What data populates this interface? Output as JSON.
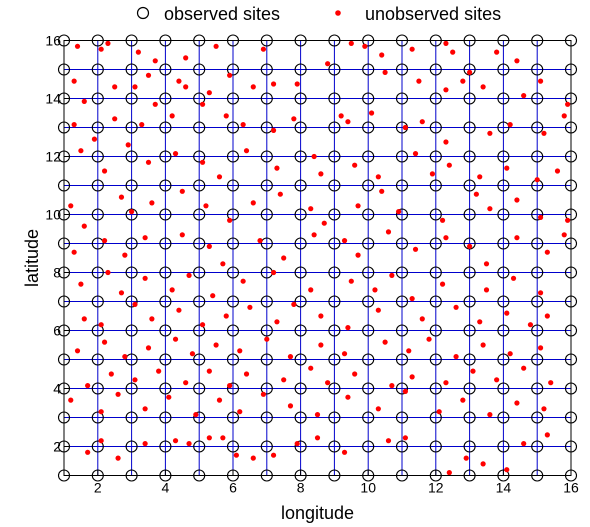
{
  "chart_data": {
    "type": "scatter",
    "xlabel": "longitude",
    "ylabel": "latitude",
    "xlim": [
      1,
      16
    ],
    "ylim": [
      1,
      16
    ],
    "x_ticks": [
      2,
      4,
      6,
      8,
      10,
      12,
      14,
      16
    ],
    "y_ticks": [
      2,
      4,
      6,
      8,
      10,
      12,
      14,
      16
    ],
    "grid": true,
    "grid_step": 1,
    "legend_placement": "top-center",
    "legend": [
      {
        "label": "observed sites",
        "marker": "open-circle",
        "color": "#000000"
      },
      {
        "label": "unobserved sites",
        "marker": "dot",
        "color": "#ff0000"
      }
    ],
    "colors": {
      "grid": "#0000cc",
      "observed": "#000000",
      "unobserved": "#ff0000"
    },
    "series": [
      {
        "name": "observed sites",
        "description_grid": {
          "x_start": 1,
          "x_end": 16,
          "y_start": 1,
          "y_end": 16,
          "step": 1
        }
      },
      {
        "name": "unobserved sites",
        "points": [
          [
            1.4,
            15.8
          ],
          [
            2.1,
            15.7
          ],
          [
            2.3,
            15.9
          ],
          [
            3.2,
            15.6
          ],
          [
            3.7,
            15.3
          ],
          [
            4.6,
            15.4
          ],
          [
            5.5,
            15.8
          ],
          [
            6.9,
            15.7
          ],
          [
            9.5,
            15.9
          ],
          [
            9.9,
            15.8
          ],
          [
            10.4,
            15.5
          ],
          [
            11.3,
            15.7
          ],
          [
            12.3,
            15.9
          ],
          [
            12.5,
            15.6
          ],
          [
            13.8,
            15.6
          ],
          [
            14.4,
            15.3
          ],
          [
            1.3,
            14.6
          ],
          [
            1.6,
            13.9
          ],
          [
            2.5,
            14.4
          ],
          [
            3.1,
            14.4
          ],
          [
            3.5,
            14.8
          ],
          [
            4.4,
            14.6
          ],
          [
            4.6,
            14.4
          ],
          [
            5.3,
            14.2
          ],
          [
            5.9,
            14.8
          ],
          [
            6.6,
            14.4
          ],
          [
            7.2,
            14.5
          ],
          [
            7.9,
            14.5
          ],
          [
            8.8,
            15.2
          ],
          [
            10.5,
            14.9
          ],
          [
            11.5,
            14.6
          ],
          [
            12.3,
            14.3
          ],
          [
            12.8,
            14.6
          ],
          [
            13.0,
            14.9
          ],
          [
            13.4,
            14.4
          ],
          [
            14.6,
            14.1
          ],
          [
            15.1,
            14.6
          ],
          [
            15.9,
            13.8
          ],
          [
            1.3,
            13.1
          ],
          [
            1.9,
            12.6
          ],
          [
            2.5,
            13.3
          ],
          [
            3.3,
            13.1
          ],
          [
            3.7,
            13.8
          ],
          [
            4.2,
            13.4
          ],
          [
            5.1,
            13.8
          ],
          [
            5.8,
            13.4
          ],
          [
            6.3,
            13.1
          ],
          [
            7.2,
            12.9
          ],
          [
            7.8,
            13.3
          ],
          [
            9.2,
            13.4
          ],
          [
            9.4,
            13.2
          ],
          [
            10.1,
            13.5
          ],
          [
            11.1,
            13.0
          ],
          [
            11.6,
            13.2
          ],
          [
            12.3,
            12.5
          ],
          [
            13.6,
            12.8
          ],
          [
            14.2,
            13.1
          ],
          [
            15.2,
            12.8
          ],
          [
            15.8,
            13.4
          ],
          [
            1.5,
            12.2
          ],
          [
            2.2,
            11.5
          ],
          [
            2.9,
            12.4
          ],
          [
            3.5,
            11.8
          ],
          [
            4.3,
            12.1
          ],
          [
            5.1,
            11.8
          ],
          [
            5.6,
            11.3
          ],
          [
            6.4,
            12.2
          ],
          [
            7.3,
            11.6
          ],
          [
            8.4,
            12.0
          ],
          [
            8.6,
            11.4
          ],
          [
            9.6,
            11.7
          ],
          [
            10.3,
            11.3
          ],
          [
            11.4,
            12.1
          ],
          [
            11.9,
            11.4
          ],
          [
            12.4,
            11.7
          ],
          [
            13.3,
            11.3
          ],
          [
            14.1,
            11.6
          ],
          [
            15.0,
            11.2
          ],
          [
            15.6,
            11.5
          ],
          [
            1.2,
            10.3
          ],
          [
            1.6,
            9.6
          ],
          [
            2.7,
            10.6
          ],
          [
            3.0,
            10.1
          ],
          [
            3.6,
            10.4
          ],
          [
            4.5,
            10.8
          ],
          [
            5.2,
            10.3
          ],
          [
            5.9,
            9.8
          ],
          [
            6.6,
            10.4
          ],
          [
            7.4,
            10.7
          ],
          [
            8.3,
            10.2
          ],
          [
            8.7,
            9.7
          ],
          [
            9.7,
            10.3
          ],
          [
            10.4,
            10.8
          ],
          [
            10.9,
            10.1
          ],
          [
            12.2,
            9.8
          ],
          [
            13.2,
            10.7
          ],
          [
            13.6,
            10.2
          ],
          [
            14.4,
            10.5
          ],
          [
            15.1,
            9.9
          ],
          [
            15.9,
            9.8
          ],
          [
            1.3,
            8.7
          ],
          [
            2.2,
            9.1
          ],
          [
            2.8,
            8.6
          ],
          [
            3.4,
            9.2
          ],
          [
            4.5,
            9.3
          ],
          [
            5.3,
            8.9
          ],
          [
            5.7,
            8.3
          ],
          [
            6.8,
            9.1
          ],
          [
            7.5,
            8.5
          ],
          [
            8.4,
            9.3
          ],
          [
            9.3,
            9.1
          ],
          [
            9.7,
            8.6
          ],
          [
            10.6,
            9.4
          ],
          [
            11.4,
            8.8
          ],
          [
            12.3,
            9.2
          ],
          [
            13.0,
            8.9
          ],
          [
            13.5,
            8.3
          ],
          [
            14.4,
            9.2
          ],
          [
            15.3,
            8.7
          ],
          [
            15.8,
            9.3
          ],
          [
            1.5,
            7.6
          ],
          [
            2.3,
            8.0
          ],
          [
            2.7,
            7.3
          ],
          [
            3.4,
            7.8
          ],
          [
            4.2,
            7.4
          ],
          [
            4.7,
            7.9
          ],
          [
            5.4,
            7.2
          ],
          [
            6.3,
            7.7
          ],
          [
            7.2,
            8.0
          ],
          [
            8.3,
            7.4
          ],
          [
            9.5,
            7.7
          ],
          [
            10.2,
            7.4
          ],
          [
            10.7,
            7.9
          ],
          [
            11.3,
            7.1
          ],
          [
            12.2,
            7.6
          ],
          [
            13.5,
            7.4
          ],
          [
            14.3,
            7.8
          ],
          [
            15.1,
            7.3
          ],
          [
            1.6,
            6.4
          ],
          [
            2.1,
            6.2
          ],
          [
            3.1,
            6.9
          ],
          [
            3.6,
            6.4
          ],
          [
            4.4,
            6.7
          ],
          [
            5.1,
            6.2
          ],
          [
            5.8,
            6.5
          ],
          [
            6.5,
            6.8
          ],
          [
            7.3,
            6.3
          ],
          [
            7.8,
            6.9
          ],
          [
            8.6,
            6.5
          ],
          [
            9.4,
            6.1
          ],
          [
            10.3,
            6.7
          ],
          [
            11.6,
            6.4
          ],
          [
            12.6,
            6.8
          ],
          [
            13.3,
            6.3
          ],
          [
            14.1,
            6.6
          ],
          [
            14.8,
            6.2
          ],
          [
            15.3,
            6.5
          ],
          [
            1.4,
            5.3
          ],
          [
            2.2,
            5.6
          ],
          [
            2.8,
            5.1
          ],
          [
            3.5,
            5.4
          ],
          [
            4.3,
            5.7
          ],
          [
            4.8,
            5.2
          ],
          [
            5.5,
            5.5
          ],
          [
            6.2,
            5.3
          ],
          [
            7.0,
            5.7
          ],
          [
            7.7,
            5.1
          ],
          [
            8.6,
            5.5
          ],
          [
            9.3,
            5.2
          ],
          [
            10.5,
            5.6
          ],
          [
            11.2,
            5.3
          ],
          [
            11.8,
            5.7
          ],
          [
            12.6,
            5.1
          ],
          [
            13.4,
            5.5
          ],
          [
            14.2,
            5.2
          ],
          [
            15.1,
            5.4
          ],
          [
            1.7,
            4.1
          ],
          [
            2.4,
            4.5
          ],
          [
            3.1,
            4.3
          ],
          [
            3.8,
            4.6
          ],
          [
            4.6,
            4.2
          ],
          [
            5.3,
            4.6
          ],
          [
            5.9,
            4.1
          ],
          [
            6.4,
            4.5
          ],
          [
            7.5,
            4.3
          ],
          [
            8.3,
            4.7
          ],
          [
            8.8,
            4.2
          ],
          [
            9.6,
            4.5
          ],
          [
            10.7,
            4.1
          ],
          [
            11.3,
            4.4
          ],
          [
            12.3,
            4.2
          ],
          [
            13.1,
            4.6
          ],
          [
            13.8,
            4.3
          ],
          [
            14.6,
            4.7
          ],
          [
            15.4,
            4.2
          ],
          [
            1.2,
            3.6
          ],
          [
            2.1,
            3.2
          ],
          [
            2.6,
            3.8
          ],
          [
            3.4,
            3.3
          ],
          [
            4.1,
            3.7
          ],
          [
            4.9,
            3.1
          ],
          [
            5.6,
            3.6
          ],
          [
            6.2,
            3.2
          ],
          [
            6.9,
            3.8
          ],
          [
            7.7,
            3.4
          ],
          [
            8.5,
            3.1
          ],
          [
            9.4,
            3.7
          ],
          [
            10.3,
            3.3
          ],
          [
            11.1,
            3.9
          ],
          [
            12.1,
            3.2
          ],
          [
            12.8,
            3.6
          ],
          [
            13.6,
            3.1
          ],
          [
            14.4,
            3.5
          ],
          [
            15.2,
            3.3
          ],
          [
            1.7,
            1.8
          ],
          [
            2.1,
            2.2
          ],
          [
            2.6,
            1.6
          ],
          [
            3.4,
            2.1
          ],
          [
            4.3,
            2.2
          ],
          [
            4.7,
            2.1
          ],
          [
            5.3,
            2.3
          ],
          [
            5.7,
            2.3
          ],
          [
            6.1,
            1.7
          ],
          [
            6.6,
            1.6
          ],
          [
            7.2,
            1.7
          ],
          [
            7.9,
            2.1
          ],
          [
            8.5,
            2.3
          ],
          [
            9.3,
            1.8
          ],
          [
            10.6,
            2.2
          ],
          [
            11.1,
            2.3
          ],
          [
            12.4,
            1.1
          ],
          [
            12.9,
            1.6
          ],
          [
            13.4,
            1.4
          ],
          [
            14.1,
            1.2
          ],
          [
            14.6,
            2.1
          ],
          [
            15.3,
            2.4
          ]
        ]
      }
    ]
  }
}
